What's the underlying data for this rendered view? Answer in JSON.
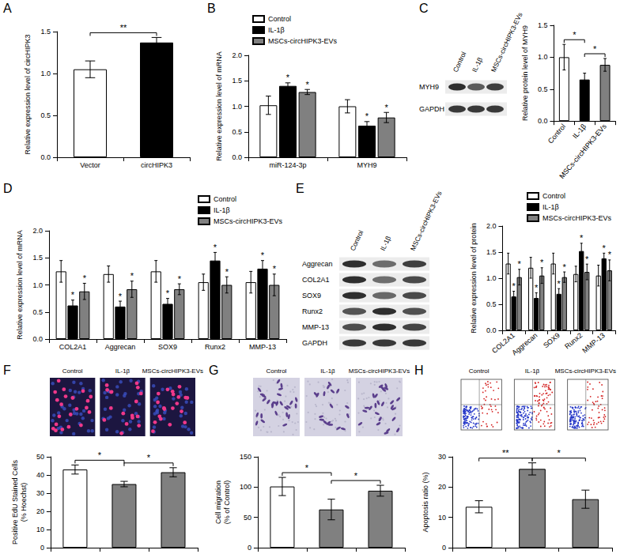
{
  "chart_data": [
    {
      "type": "bar",
      "ylabel": "Relative expression level of circHIPK3",
      "categories": [
        "Vector",
        "circHIPK3"
      ],
      "values": [
        1.05,
        1.37
      ],
      "errors": [
        0.1,
        0.06
      ],
      "colors": [
        "#ffffff",
        "#000000"
      ],
      "ylim": [
        0,
        1.5
      ],
      "yticks": [
        {
          "value": 0,
          "label": "0.0"
        },
        0.5,
        {
          "value": 1,
          "label": "1.0"
        },
        1.5
      ],
      "grid": false,
      "annotations": [
        {
          "text": "**",
          "from": "Vector",
          "to": "circHIPK3"
        }
      ]
    },
    {
      "type": "bar",
      "ylabel": "Relative expression level of mRNA",
      "categories": [
        "miR-124-3p",
        "MYH9"
      ],
      "series": [
        {
          "name": "Control",
          "color": "#ffffff",
          "values": [
            1.02,
            1.0
          ],
          "errors": [
            0.18,
            0.13
          ]
        },
        {
          "name": "IL-1β",
          "color": "#000000",
          "values": [
            1.4,
            0.62
          ],
          "errors": [
            0.06,
            0.08
          ],
          "annotations": [
            "*",
            "*"
          ]
        },
        {
          "name": "MSCs-circHIPK3-EVs",
          "color": "#808080",
          "values": [
            1.28,
            0.78
          ],
          "errors": [
            0.05,
            0.1
          ],
          "annotations": [
            "*",
            "*"
          ]
        }
      ],
      "ylim": [
        0,
        2
      ],
      "yticks": [
        {
          "value": 0,
          "label": "0.0"
        },
        0.5,
        {
          "value": 1,
          "label": "1.0"
        },
        1.5,
        {
          "value": 2,
          "label": "2.0"
        }
      ],
      "legend": "top-left",
      "grid": false
    },
    {
      "type": "bar",
      "ylabel": "Relative protein level of MYH9",
      "categories": [
        "Control",
        "IL-1β",
        "MSCs-circHIPK3-EVs"
      ],
      "values": [
        1.0,
        0.65,
        0.88
      ],
      "errors": [
        0.2,
        0.1,
        0.1
      ],
      "colors": [
        "#ffffff",
        "#000000",
        "#808080"
      ],
      "ylim": [
        0,
        1.5
      ],
      "yticks": [
        {
          "value": 0,
          "label": "0.0"
        },
        0.5,
        {
          "value": 1,
          "label": "1.0"
        },
        1.5
      ],
      "grid": false,
      "annotations": [
        {
          "text": "*",
          "from": "Control",
          "to": "IL-1β"
        },
        {
          "text": "*",
          "from": "IL-1β",
          "to": "MSCs-circHIPK3-EVs"
        }
      ]
    },
    {
      "type": "bar",
      "ylabel": "Relative expression level of mRNA",
      "categories": [
        "COL2A1",
        "Aggrecan",
        "SOX9",
        "Runx2",
        "MMP-13"
      ],
      "series": [
        {
          "name": "Control",
          "color": "#ffffff",
          "values": [
            1.25,
            1.2,
            1.25,
            1.05,
            1.05
          ],
          "errors": [
            0.2,
            0.15,
            0.2,
            0.15,
            0.2
          ]
        },
        {
          "name": "IL-1β",
          "color": "#000000",
          "values": [
            0.62,
            0.6,
            0.65,
            1.45,
            1.3
          ],
          "errors": [
            0.1,
            0.1,
            0.1,
            0.15,
            0.15
          ],
          "annotations": [
            "*",
            "*",
            "*",
            "*",
            "*"
          ]
        },
        {
          "name": "MSCs-circHIPK3-EVs",
          "color": "#808080",
          "values": [
            0.88,
            0.92,
            0.92,
            1.0,
            1.0
          ],
          "errors": [
            0.15,
            0.15,
            0.1,
            0.15,
            0.2
          ],
          "annotations": [
            "*",
            "*",
            "*",
            "*",
            "*"
          ]
        }
      ],
      "ylim": [
        0,
        2
      ],
      "yticks": [
        {
          "value": 0,
          "label": "0.0"
        },
        0.5,
        {
          "value": 1,
          "label": "1.0"
        },
        1.5,
        {
          "value": 2,
          "label": "2.0"
        }
      ],
      "legend": "top-right",
      "grid": false
    },
    {
      "type": "bar",
      "ylabel": "Relative expression level of protein",
      "categories": [
        "COL2A1",
        "Aggrecan",
        "SOX9",
        "Runx2",
        "MMP-13"
      ],
      "series": [
        {
          "name": "Control",
          "color": "#ffffff",
          "values": [
            1.28,
            1.2,
            1.28,
            1.08,
            1.05
          ],
          "errors": [
            0.2,
            0.2,
            0.2,
            0.15,
            0.2
          ]
        },
        {
          "name": "IL-1β",
          "color": "#000000",
          "values": [
            0.65,
            0.62,
            0.7,
            1.52,
            1.38
          ],
          "errors": [
            0.1,
            0.1,
            0.1,
            0.15,
            0.1
          ],
          "annotations": [
            "*",
            "*",
            "*",
            "*",
            "*"
          ]
        },
        {
          "name": "MSCs-circHIPK3-EVs",
          "color": "#808080",
          "values": [
            1.02,
            1.05,
            1.02,
            1.12,
            1.15
          ],
          "errors": [
            0.15,
            0.15,
            0.1,
            0.15,
            0.2
          ],
          "annotations": [
            "*",
            "*",
            "*",
            "*",
            "*"
          ]
        }
      ],
      "ylim": [
        0,
        2
      ],
      "yticks": [
        {
          "value": 0,
          "label": "0.0"
        },
        0.5,
        {
          "value": 1,
          "label": "1.0"
        },
        1.5,
        {
          "value": 2,
          "label": "2.0"
        }
      ],
      "legend": "top-right",
      "grid": false
    },
    {
      "type": "bar",
      "ylabel": "Positive EdU Stained Cells\n(% Hoechst)",
      "categories": [
        "Control",
        "IL-1β",
        "MSCs-circHIPK3-EVs"
      ],
      "values": [
        43,
        35,
        41.5
      ],
      "errors": [
        2.5,
        1.5,
        2.5
      ],
      "colors": [
        "#ffffff",
        "#808080",
        "#808080"
      ],
      "ylim": [
        0,
        50
      ],
      "yticks": [
        0,
        10,
        20,
        30,
        40,
        50
      ],
      "grid": false,
      "tick_labels": "y",
      "annotations": [
        {
          "text": "*",
          "from": "Control",
          "to": "IL-1β"
        },
        {
          "text": "*",
          "from": "IL-1β",
          "to": "MSCs-circHIPK3-EVs"
        }
      ]
    },
    {
      "type": "bar",
      "ylabel": "Cell migration\n(% of Control)",
      "categories": [
        "Control",
        "IL-1β",
        "MSCs-circHIPK3-EVs"
      ],
      "values": [
        101,
        63,
        94
      ],
      "errors": [
        15,
        17,
        9
      ],
      "colors": [
        "#ffffff",
        "#808080",
        "#808080"
      ],
      "ylim": [
        0,
        150
      ],
      "yticks": [
        0,
        50,
        100,
        150
      ],
      "grid": false,
      "tick_labels": "y",
      "annotations": [
        {
          "text": "*",
          "from": "Control",
          "to": "IL-1β"
        },
        {
          "text": "*",
          "from": "IL-1β",
          "to": "MSCs-circHIPK3-EVs"
        }
      ]
    },
    {
      "type": "bar",
      "ylabel": "Apoptosis ratio (%)",
      "categories": [
        "Control",
        "IL-1β",
        "MSCs-circHIPK3-EVs"
      ],
      "values": [
        13.5,
        26,
        16
      ],
      "errors": [
        2,
        2,
        3
      ],
      "colors": [
        "#ffffff",
        "#808080",
        "#808080"
      ],
      "ylim": [
        0,
        30
      ],
      "yticks": [
        0,
        10,
        20,
        30
      ],
      "grid": false,
      "tick_labels": "y",
      "annotations": [
        {
          "text": "**",
          "from": "Control",
          "to": "IL-1β"
        },
        {
          "text": "*",
          "from": "IL-1β",
          "to": "MSCs-circHIPK3-EVs"
        }
      ]
    }
  ],
  "figure": {
    "panel_labels": [
      "A",
      "B",
      "C",
      "D",
      "E",
      "F",
      "G",
      "H"
    ],
    "blots": [
      {
        "lanes": [
          "Control",
          "IL-1β",
          "MSCs-circHIPK3-EVs"
        ],
        "bands": [
          "MYH9",
          "GAPDH"
        ]
      },
      {
        "lanes": [
          "Control",
          "IL-1β",
          "MSCs-circHIPK3-EVs"
        ],
        "bands": [
          "Aggrecan",
          "COL2A1",
          "SOX9",
          "Runx2",
          "MMP-13",
          "GAPDH"
        ]
      }
    ]
  }
}
